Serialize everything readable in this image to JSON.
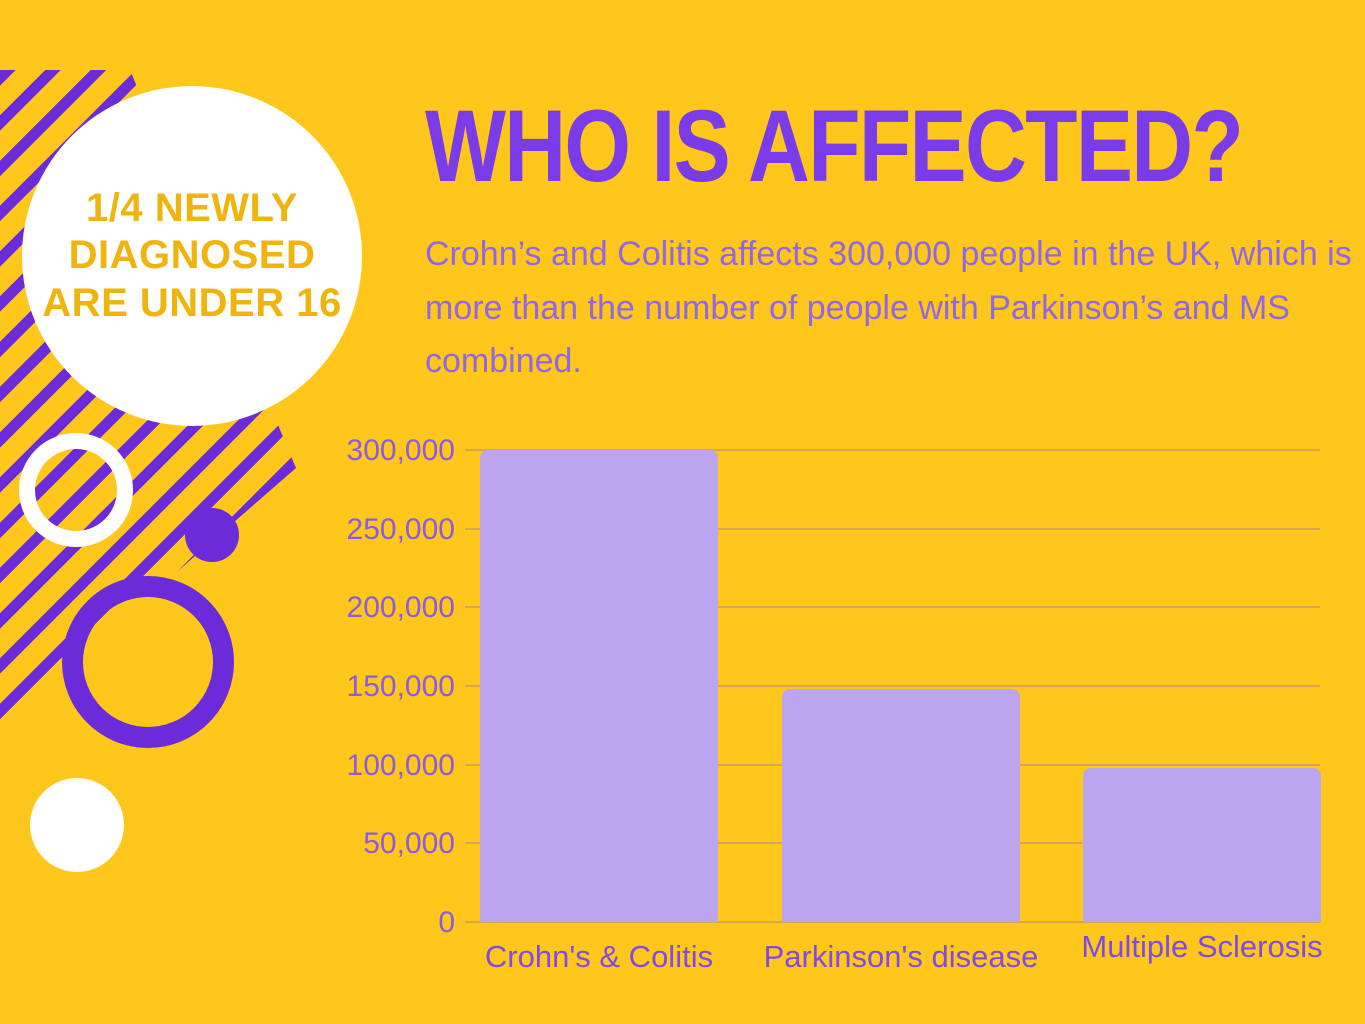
{
  "colors": {
    "background": "#FFC71B",
    "purple_accent": "#6B2BD9",
    "title_purple": "#7A3BE8",
    "paragraph_purple": "#9168E3",
    "axis_label_purple": "#8A5CE2",
    "xlabel_purple": "#7E4BE4",
    "bar_fill": "#BCA4EE",
    "badge_text_yellow": "#F0B40E",
    "gridline_color": "rgba(130,100,190,0.32)"
  },
  "badge": {
    "lines": [
      "1/4 NEWLY",
      "DIAGNOSED",
      "ARE UNDER 16"
    ]
  },
  "title": "WHO IS AFFECTED?",
  "paragraph": "Crohn’s and Colitis affects 300,000 people in the UK, which is more than the number of people with Parkinson’s and MS combined.",
  "chart_data": {
    "type": "bar",
    "title": "",
    "xlabel": "",
    "ylabel": "",
    "categories": [
      "Crohn's & Colitis",
      "Parkinson's disease",
      "Multiple Sclerosis"
    ],
    "values": [
      300000,
      148000,
      98000
    ],
    "ylim": [
      0,
      300000
    ],
    "grid": true,
    "legend": false,
    "y_ticks": [
      {
        "value": 300000,
        "label": "300,000"
      },
      {
        "value": 250000,
        "label": "250,000"
      },
      {
        "value": 200000,
        "label": "200,000"
      },
      {
        "value": 150000,
        "label": "150,000"
      },
      {
        "value": 100000,
        "label": "100,000"
      },
      {
        "value": 50000,
        "label": "50,000"
      },
      {
        "value": 0,
        "label": "0"
      }
    ]
  }
}
